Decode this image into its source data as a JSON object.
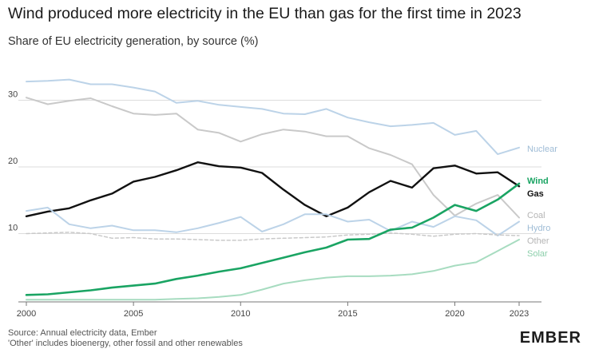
{
  "title": "Wind produced more electricity in the EU than gas for the first time in 2023",
  "subtitle": "Share of EU electricity generation, by source (%)",
  "footer": {
    "source": "Source: Annual electricity data, Ember",
    "note": "'Other' includes bioenergy, other fossil and other renewables"
  },
  "logo": "EMBER",
  "chart_data": {
    "type": "line",
    "x": [
      2000,
      2001,
      2002,
      2003,
      2004,
      2005,
      2006,
      2007,
      2008,
      2009,
      2010,
      2011,
      2012,
      2013,
      2014,
      2015,
      2016,
      2017,
      2018,
      2019,
      2020,
      2021,
      2022,
      2023
    ],
    "xticks": [
      "2000",
      "2005",
      "2010",
      "2015",
      "2020",
      "2023"
    ],
    "yticks": [
      "10",
      "20",
      "30"
    ],
    "ylim": [
      0,
      35
    ],
    "grid": true,
    "series": [
      {
        "name": "Nuclear",
        "color": "#bcd3e8",
        "width": 2,
        "values": [
          32.8,
          32.9,
          33.1,
          32.4,
          32.4,
          31.9,
          31.3,
          29.6,
          29.9,
          29.3,
          29.0,
          28.7,
          28.0,
          27.9,
          28.7,
          27.4,
          26.7,
          26.1,
          26.3,
          26.6,
          24.8,
          25.4,
          21.9,
          22.9
        ]
      },
      {
        "name": "Coal",
        "color": "#c9c9c9",
        "width": 2,
        "values": [
          30.4,
          29.4,
          29.9,
          30.3,
          29.1,
          28.0,
          27.8,
          28.0,
          25.6,
          25.1,
          23.8,
          24.9,
          25.6,
          25.3,
          24.6,
          24.6,
          22.8,
          21.8,
          20.4,
          15.8,
          12.7,
          14.5,
          15.8,
          12.4
        ]
      },
      {
        "name": "Gas",
        "color": "#111111",
        "width": 2.4,
        "values": [
          12.6,
          13.3,
          13.8,
          15.0,
          16.0,
          17.8,
          18.5,
          19.5,
          20.7,
          20.1,
          19.9,
          19.1,
          16.6,
          14.3,
          12.6,
          13.9,
          16.2,
          17.9,
          16.9,
          19.8,
          20.2,
          19.0,
          19.2,
          17.1
        ]
      },
      {
        "name": "Hydro",
        "color": "#bcd3e8",
        "width": 2,
        "values": [
          13.4,
          13.9,
          11.4,
          10.8,
          11.2,
          10.5,
          10.5,
          10.2,
          10.8,
          11.6,
          12.5,
          10.3,
          11.4,
          12.9,
          12.9,
          11.8,
          12.1,
          10.4,
          11.8,
          11.0,
          12.6,
          12.0,
          9.7,
          11.8
        ]
      },
      {
        "name": "Other",
        "color": "#c9c9c9",
        "width": 1.5,
        "dashed": true,
        "values": [
          10.0,
          10.1,
          10.2,
          10.0,
          9.3,
          9.4,
          9.2,
          9.2,
          9.1,
          9.0,
          9.0,
          9.2,
          9.3,
          9.4,
          9.5,
          9.8,
          9.9,
          10.1,
          9.9,
          9.6,
          9.9,
          10.0,
          9.8,
          9.7
        ]
      },
      {
        "name": "Solar",
        "color": "#a7dcc0",
        "width": 2,
        "values": [
          0.1,
          0.1,
          0.1,
          0.1,
          0.1,
          0.1,
          0.1,
          0.2,
          0.3,
          0.5,
          0.8,
          1.6,
          2.5,
          3.0,
          3.4,
          3.6,
          3.6,
          3.7,
          3.9,
          4.4,
          5.2,
          5.7,
          7.4,
          9.1
        ]
      },
      {
        "name": "Wind",
        "color": "#1aa463",
        "width": 2.6,
        "values": [
          0.8,
          0.9,
          1.2,
          1.5,
          1.9,
          2.2,
          2.5,
          3.2,
          3.7,
          4.3,
          4.8,
          5.6,
          6.4,
          7.2,
          7.9,
          9.1,
          9.2,
          10.6,
          10.9,
          12.4,
          14.3,
          13.4,
          15.1,
          17.5
        ]
      }
    ],
    "labels": [
      {
        "series": "Nuclear",
        "text": "Nuclear",
        "color": "#9fbcd6"
      },
      {
        "series": "Wind",
        "text": "Wind",
        "color": "#1aa463"
      },
      {
        "series": "Gas",
        "text": "Gas",
        "color": "#111111"
      },
      {
        "series": "Coal",
        "text": "Coal",
        "color": "#b5b5b5"
      },
      {
        "series": "Hydro",
        "text": "Hydro",
        "color": "#9fbcd6"
      },
      {
        "series": "Other",
        "text": "Other",
        "color": "#b5b5b5"
      },
      {
        "series": "Solar",
        "text": "Solar",
        "color": "#8ccfab"
      }
    ]
  }
}
